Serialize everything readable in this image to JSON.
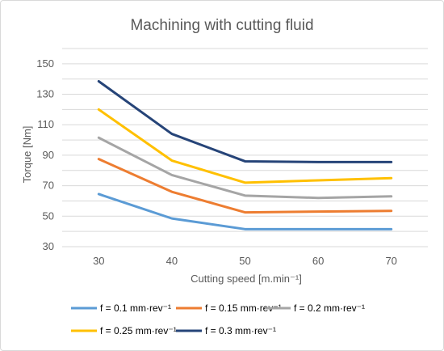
{
  "chart_data": {
    "type": "line",
    "title": "Machining with cutting fluid",
    "xlabel": "Cutting speed [m.min⁻¹]",
    "ylabel": "Torque [Nm]",
    "categories": [
      "30",
      "40",
      "50",
      "60",
      "70"
    ],
    "yticks": [
      "30",
      "50",
      "70",
      "90",
      "110",
      "130",
      "150"
    ],
    "ylim": [
      30,
      160
    ],
    "grid": true,
    "legend_position": "bottom",
    "series": [
      {
        "name": "f = 0.1 mm·rev⁻¹",
        "color": "#5b9bd5",
        "values": [
          64.5,
          48.5,
          41.5,
          41.5,
          41.5
        ]
      },
      {
        "name": "f = 0.15 mm·rev⁻¹",
        "color": "#ed7d31",
        "values": [
          87.5,
          66,
          52.5,
          53,
          53.5
        ]
      },
      {
        "name": "f = 0.2 mm·rev⁻¹",
        "color": "#a5a5a5",
        "values": [
          101.5,
          77,
          63.5,
          62,
          63
        ]
      },
      {
        "name": "f = 0.25 mm·rev⁻¹",
        "color": "#ffc000",
        "values": [
          120,
          86.5,
          72,
          73.5,
          75
        ]
      },
      {
        "name": "f = 0.3 mm·rev⁻¹",
        "color": "#264478",
        "values": [
          138.5,
          104,
          86,
          85.5,
          85.5
        ]
      }
    ]
  }
}
